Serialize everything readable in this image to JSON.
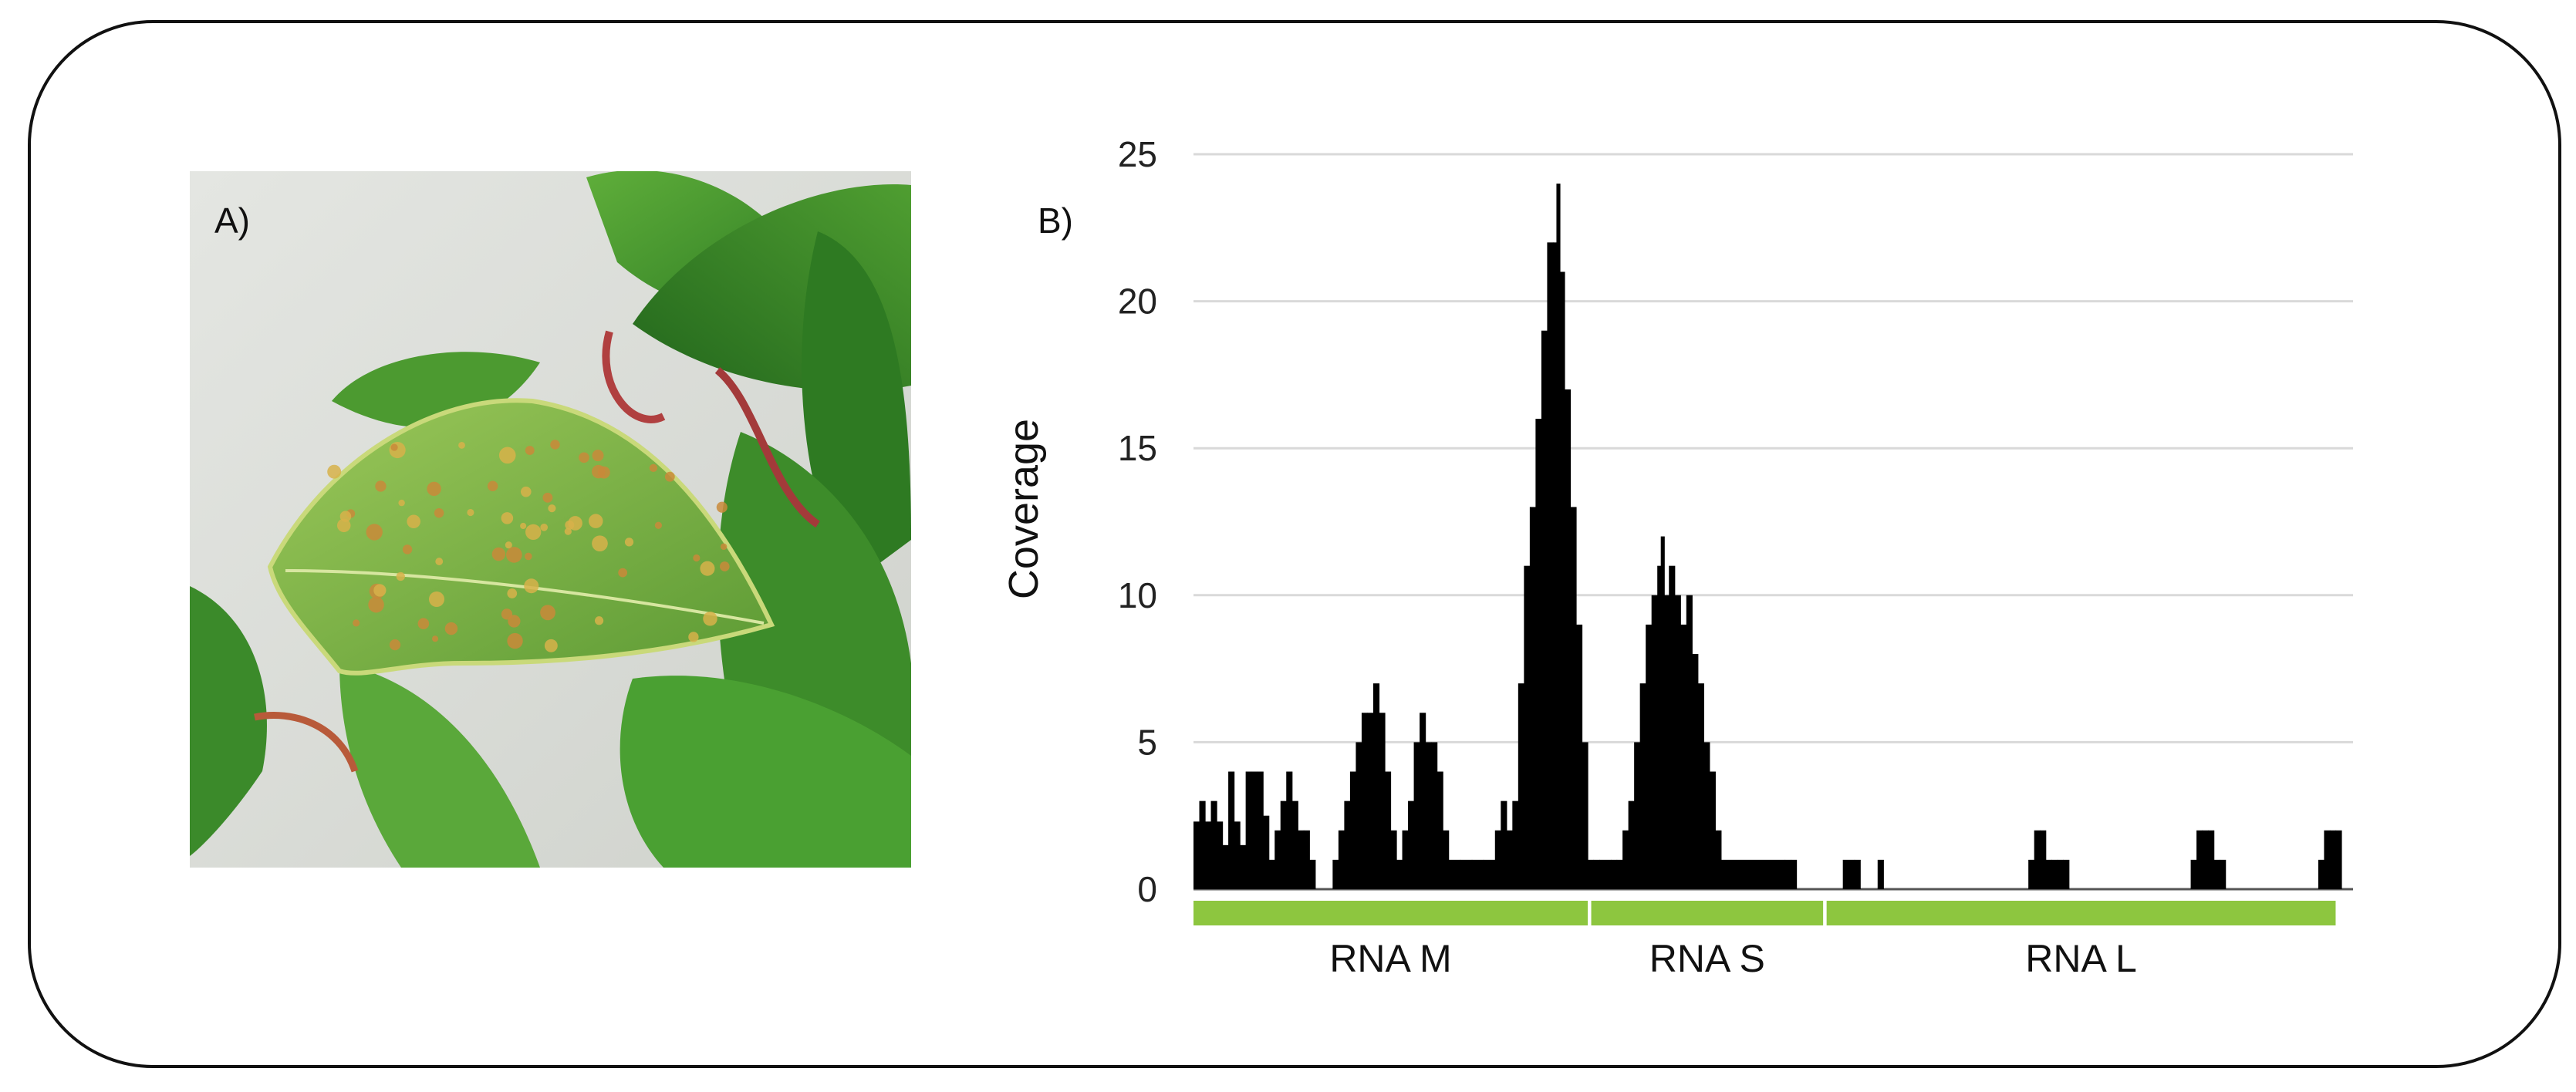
{
  "figure": {
    "panel_a_label": "A)",
    "panel_b_label": "B)",
    "photo_description_name": "leaf-photo"
  },
  "chart_data": {
    "type": "area",
    "title": "",
    "xlabel": "",
    "ylabel": "Coverage",
    "ylim": [
      0,
      25
    ],
    "yticks": [
      0,
      5,
      10,
      15,
      20,
      25
    ],
    "grid": true,
    "x_domain": [
      0,
      100
    ],
    "segments": [
      {
        "name": "RNA M",
        "start": 0,
        "end": 34,
        "color": "#8dc63f"
      },
      {
        "name": "RNA S",
        "start": 34.3,
        "end": 54.3,
        "color": "#8dc63f"
      },
      {
        "name": "RNA L",
        "start": 54.6,
        "end": 98.5,
        "color": "#8dc63f"
      }
    ],
    "series": [
      {
        "name": "Coverage",
        "color": "#000000",
        "points": [
          [
            0,
            2.3
          ],
          [
            0.5,
            3
          ],
          [
            1,
            2.3
          ],
          [
            1.5,
            3
          ],
          [
            2,
            2.3
          ],
          [
            2.5,
            1.5
          ],
          [
            3,
            4
          ],
          [
            3.5,
            2.3
          ],
          [
            4,
            1.5
          ],
          [
            4.5,
            4
          ],
          [
            5,
            4
          ],
          [
            5.5,
            4
          ],
          [
            6,
            2.5
          ],
          [
            6.5,
            1
          ],
          [
            7,
            2
          ],
          [
            7.5,
            3
          ],
          [
            8,
            4
          ],
          [
            8.5,
            3
          ],
          [
            9,
            2
          ],
          [
            9.5,
            2
          ],
          [
            10,
            1
          ],
          [
            10.5,
            0
          ],
          [
            12,
            1
          ],
          [
            12.5,
            2
          ],
          [
            13,
            3
          ],
          [
            13.5,
            4
          ],
          [
            14,
            5
          ],
          [
            14.5,
            6
          ],
          [
            15,
            6
          ],
          [
            15.5,
            7
          ],
          [
            16,
            6
          ],
          [
            16.5,
            4
          ],
          [
            17,
            2
          ],
          [
            17.5,
            1
          ],
          [
            18,
            2
          ],
          [
            18.5,
            3
          ],
          [
            19,
            5
          ],
          [
            19.5,
            6
          ],
          [
            20,
            5
          ],
          [
            20.5,
            5
          ],
          [
            21,
            4
          ],
          [
            21.5,
            2
          ],
          [
            22,
            1
          ],
          [
            23,
            1
          ],
          [
            24,
            1
          ],
          [
            25,
            1
          ],
          [
            26,
            2
          ],
          [
            26.5,
            3
          ],
          [
            27,
            2
          ],
          [
            27.5,
            3
          ],
          [
            28,
            7
          ],
          [
            28.5,
            11
          ],
          [
            29,
            13
          ],
          [
            29.5,
            16
          ],
          [
            30,
            19
          ],
          [
            30.5,
            22
          ],
          [
            31,
            22
          ],
          [
            31.3,
            24
          ],
          [
            31.6,
            21
          ],
          [
            32,
            17
          ],
          [
            32.5,
            13
          ],
          [
            33,
            9
          ],
          [
            33.5,
            5
          ],
          [
            34,
            1
          ],
          [
            34.5,
            1
          ],
          [
            35,
            1
          ],
          [
            36,
            1
          ],
          [
            36.5,
            1
          ],
          [
            37,
            2
          ],
          [
            37.5,
            3
          ],
          [
            38,
            5
          ],
          [
            38.5,
            7
          ],
          [
            39,
            9
          ],
          [
            39.5,
            10
          ],
          [
            40,
            11
          ],
          [
            40.3,
            12
          ],
          [
            40.6,
            10
          ],
          [
            41,
            11
          ],
          [
            41.5,
            10
          ],
          [
            42,
            9
          ],
          [
            42.5,
            10
          ],
          [
            43,
            8
          ],
          [
            43.5,
            7
          ],
          [
            44,
            5
          ],
          [
            44.5,
            4
          ],
          [
            45,
            2
          ],
          [
            45.5,
            1
          ],
          [
            51,
            1
          ],
          [
            51.5,
            1
          ],
          [
            52,
            0
          ],
          [
            56,
            1
          ],
          [
            57,
            1
          ],
          [
            57.5,
            0
          ],
          [
            59,
            1
          ],
          [
            59.5,
            0
          ],
          [
            72,
            1
          ],
          [
            72.5,
            2
          ],
          [
            73,
            2
          ],
          [
            73.5,
            1
          ],
          [
            74,
            1
          ],
          [
            74.5,
            1
          ],
          [
            75,
            1
          ],
          [
            75.5,
            0
          ],
          [
            86,
            1
          ],
          [
            86.5,
            2
          ],
          [
            87,
            2
          ],
          [
            87.5,
            2
          ],
          [
            88,
            1
          ],
          [
            88.5,
            1
          ],
          [
            89,
            0
          ],
          [
            97,
            1
          ],
          [
            97.5,
            2
          ],
          [
            98,
            2
          ],
          [
            98.5,
            2
          ]
        ]
      }
    ]
  }
}
